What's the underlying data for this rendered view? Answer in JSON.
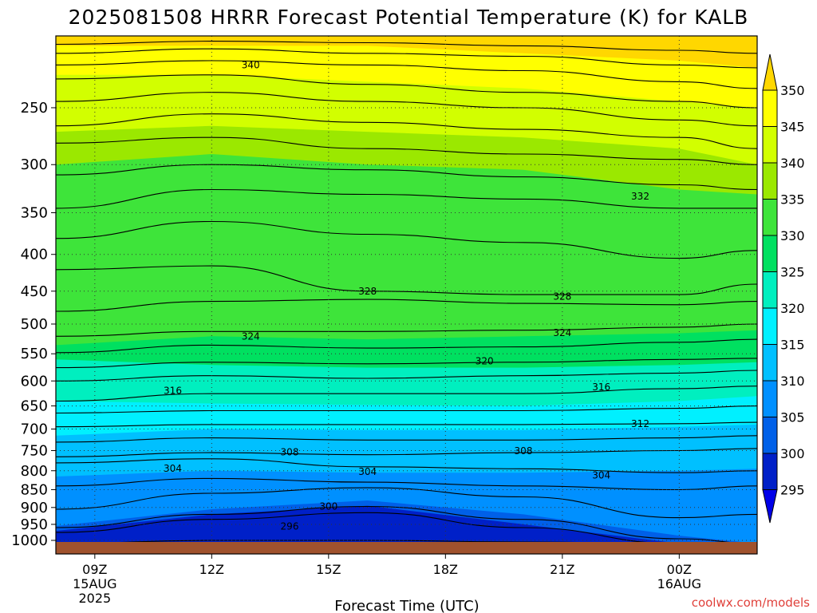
{
  "title": "2025081508 HRRR Forecast Potential Temperature (K) for KALB",
  "x_axis_title": "Forecast Time (UTC)",
  "credit": "coolwx.com/models",
  "colorbar_labels": [
    "350",
    "345",
    "340",
    "335",
    "330",
    "325",
    "320",
    "315",
    "310",
    "305",
    "300",
    "295"
  ],
  "colorbar_colors": [
    "#ffd700",
    "#ffff00",
    "#d2ff00",
    "#9be800",
    "#3ee43a",
    "#00e060",
    "#00efbf",
    "#00f0ff",
    "#00c0ff",
    "#0090ff",
    "#0060e8",
    "#0020c8",
    "#0000e8"
  ],
  "colorbar_levels": [
    350,
    345,
    340,
    335,
    330,
    325,
    320,
    315,
    310,
    305,
    300,
    295
  ],
  "ground_color": "#a0522d",
  "chart_data": {
    "type": "contour",
    "variable": "Potential Temperature (K)",
    "station": "KALB",
    "x_ticks": [
      {
        "label": "09Z",
        "sub": [
          "15AUG",
          "2025"
        ],
        "hour": 9
      },
      {
        "label": "12Z",
        "sub": [],
        "hour": 12
      },
      {
        "label": "15Z",
        "sub": [],
        "hour": 15
      },
      {
        "label": "18Z",
        "sub": [],
        "hour": 18
      },
      {
        "label": "21Z",
        "sub": [],
        "hour": 21
      },
      {
        "label": "00Z",
        "sub": [
          "16AUG"
        ],
        "hour": 24
      }
    ],
    "x_range_hours": [
      8,
      26
    ],
    "y_ticks": [
      250,
      300,
      350,
      400,
      450,
      500,
      550,
      600,
      650,
      700,
      750,
      800,
      850,
      900,
      950,
      1000
    ],
    "y_range_hpa": [
      1010,
      200
    ],
    "contour_interval_k": 4,
    "contour_labels": [
      {
        "value": "340",
        "hour": 13.0,
        "p": 218
      },
      {
        "value": "332",
        "hour": 23.0,
        "p": 332
      },
      {
        "value": "328",
        "hour": 16.0,
        "p": 450
      },
      {
        "value": "328",
        "hour": 21.0,
        "p": 458
      },
      {
        "value": "324",
        "hour": 13.0,
        "p": 520
      },
      {
        "value": "324",
        "hour": 21.0,
        "p": 514
      },
      {
        "value": "320",
        "hour": 19.0,
        "p": 563
      },
      {
        "value": "316",
        "hour": 11.0,
        "p": 619
      },
      {
        "value": "316",
        "hour": 22.0,
        "p": 612
      },
      {
        "value": "312",
        "hour": 23.0,
        "p": 688
      },
      {
        "value": "308",
        "hour": 14.0,
        "p": 754
      },
      {
        "value": "308",
        "hour": 20.0,
        "p": 751
      },
      {
        "value": "304",
        "hour": 11.0,
        "p": 794
      },
      {
        "value": "304",
        "hour": 16.0,
        "p": 803
      },
      {
        "value": "304",
        "hour": 22.0,
        "p": 812
      },
      {
        "value": "300",
        "hour": 15.0,
        "p": 897
      },
      {
        "value": "296",
        "hour": 14.0,
        "p": 956
      }
    ]
  }
}
